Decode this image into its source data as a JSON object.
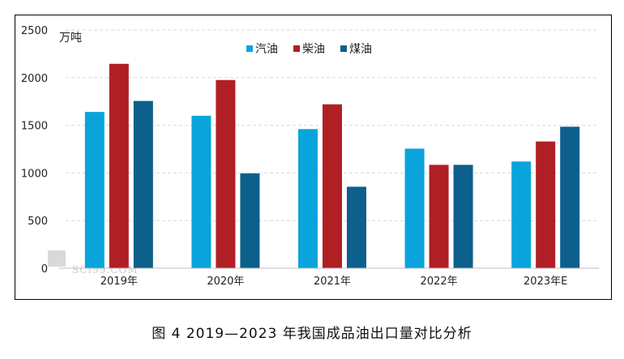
{
  "caption": "图 4 2019—2023 年我国成品油出口量对比分析",
  "watermark": "SCI99.COM",
  "colors": {
    "汽油": "#0aa4dc",
    "柴油": "#b01f24",
    "煤油": "#0d5f8c",
    "grid": "#d9d9d9",
    "axis": "#bfbfbf"
  },
  "chart_data": {
    "type": "bar",
    "unit": "万吨",
    "categories": [
      "2019年",
      "2020年",
      "2021年",
      "2022年",
      "2023年E"
    ],
    "series": [
      {
        "name": "汽油",
        "values": [
          1640,
          1600,
          1460,
          1255,
          1120
        ]
      },
      {
        "name": "柴油",
        "values": [
          2145,
          1975,
          1720,
          1085,
          1330
        ]
      },
      {
        "name": "煤油",
        "values": [
          1755,
          995,
          855,
          1085,
          1485
        ]
      }
    ],
    "ylim": [
      0,
      2500
    ],
    "yticks": [
      0,
      500,
      1000,
      1500,
      2000,
      2500
    ],
    "grid": true,
    "legend_position": "top-center"
  }
}
